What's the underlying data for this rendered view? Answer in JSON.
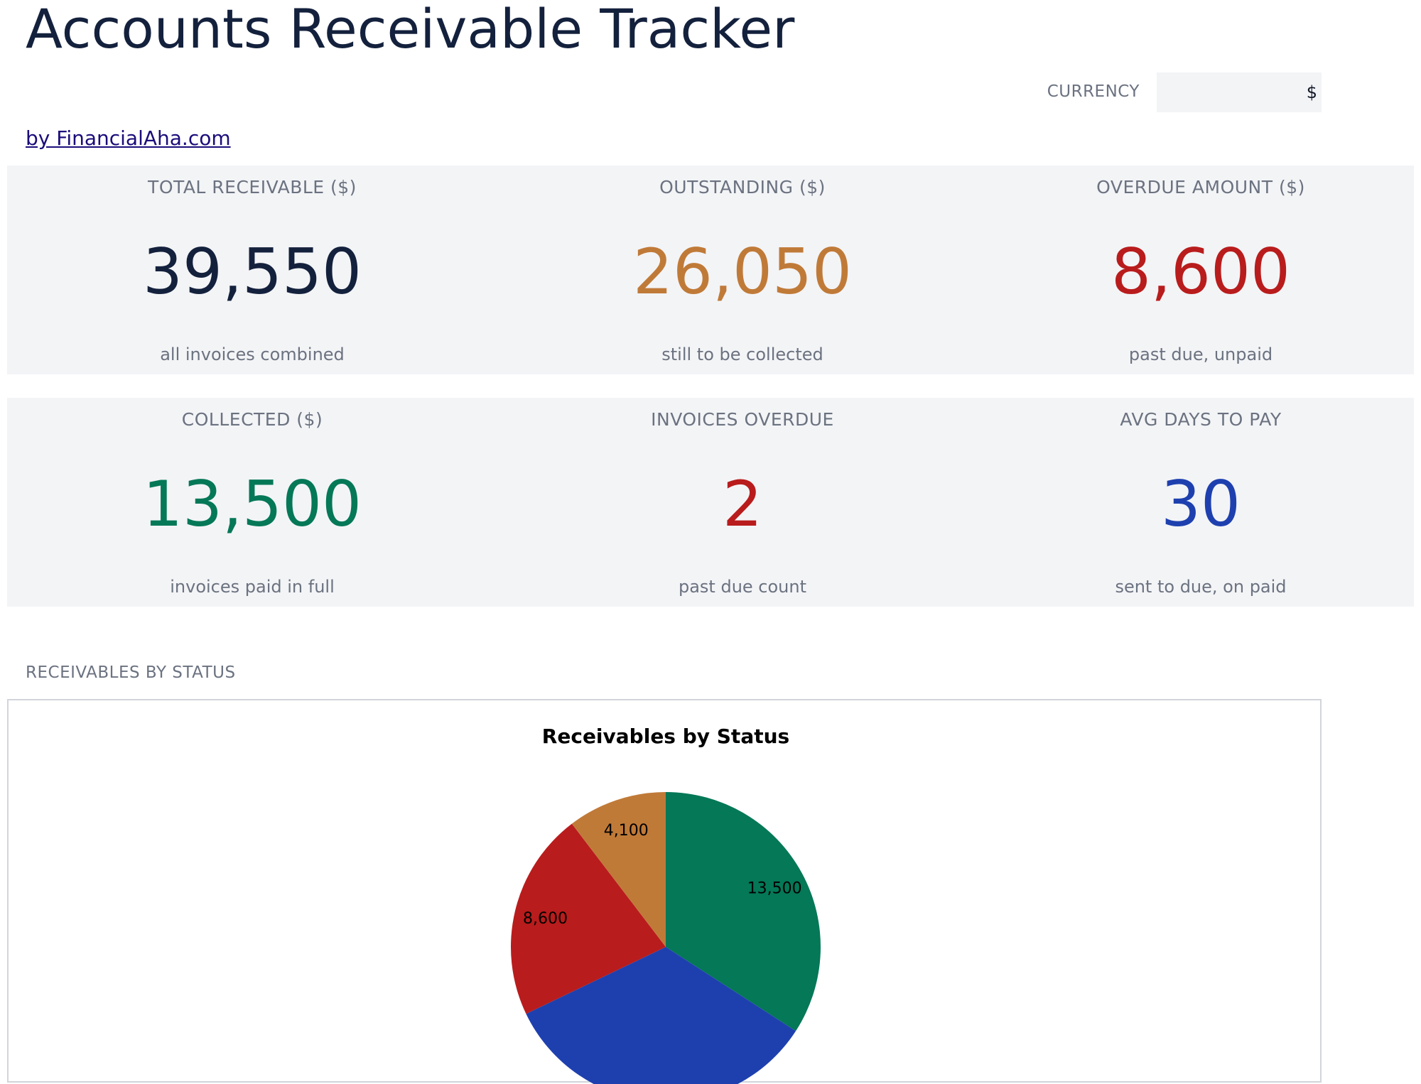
{
  "header": {
    "title": "Accounts Receivable Tracker",
    "byline": "by FinancialAha.com",
    "currency_label": "CURRENCY",
    "currency_value": "$"
  },
  "kpis": [
    {
      "label": "TOTAL RECEIVABLE ($)",
      "value": "39,550",
      "sub": "all invoices combined",
      "color": "#14213d"
    },
    {
      "label": "OUTSTANDING ($)",
      "value": "26,050",
      "sub": "still to be collected",
      "color": "#c07a38"
    },
    {
      "label": "OVERDUE AMOUNT ($)",
      "value": "8,600",
      "sub": "past due, unpaid",
      "color": "#b91c1c"
    },
    {
      "label": "COLLECTED ($)",
      "value": "13,500",
      "sub": "invoices paid in full",
      "color": "#047857"
    },
    {
      "label": "INVOICES OVERDUE",
      "value": "2",
      "sub": "past due count",
      "color": "#b91c1c"
    },
    {
      "label": "AVG DAYS TO PAY",
      "value": "30",
      "sub": "sent to due, on paid",
      "color": "#1e40af"
    }
  ],
  "section": {
    "label": "RECEIVABLES BY STATUS"
  },
  "chart_data": {
    "type": "pie",
    "title": "Receivables by Status",
    "values": [
      13500,
      13350,
      8600,
      4100
    ],
    "labels": [
      "13,500",
      "",
      "8,600",
      "4,100"
    ],
    "colors": [
      "#047857",
      "#1e40af",
      "#b91c1c",
      "#c07a38"
    ],
    "start_angle_deg": 90,
    "direction": "clockwise"
  }
}
